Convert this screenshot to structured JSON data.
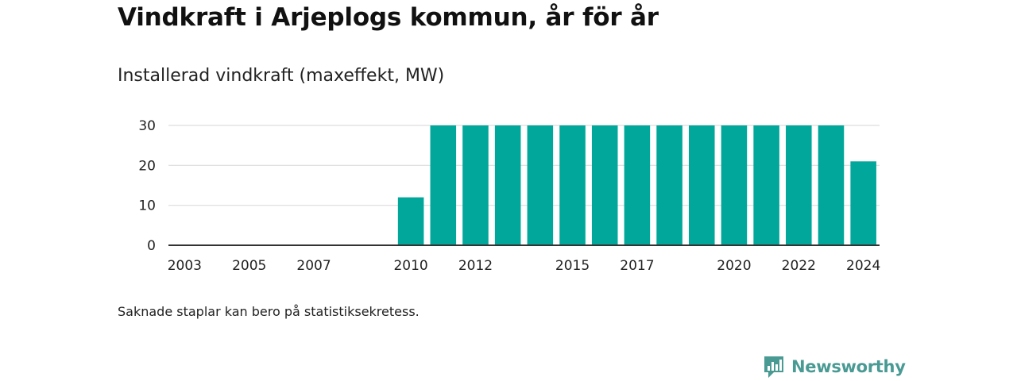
{
  "header": {
    "title": "Vindkraft i Arjeplogs kommun, år för år",
    "subtitle": "Installerad vindkraft (maxeffekt, MW)"
  },
  "footnote": "Saknade staplar kan bero på statistiksekretess.",
  "brand": {
    "name": "Newsworthy",
    "color": "#4a9a94"
  },
  "colors": {
    "bar": "#00a79a",
    "grid": "#dddddd",
    "axis": "#333333"
  },
  "chart_data": {
    "type": "bar",
    "x": [
      2003,
      2004,
      2005,
      2006,
      2007,
      2008,
      2009,
      2010,
      2011,
      2012,
      2013,
      2014,
      2015,
      2016,
      2017,
      2018,
      2019,
      2020,
      2021,
      2022,
      2023,
      2024
    ],
    "values": [
      0,
      0,
      0,
      0,
      0,
      0,
      0,
      12,
      30,
      30,
      30,
      30,
      30,
      30,
      30,
      30,
      30,
      30,
      30,
      30,
      30,
      21
    ],
    "xticks": [
      "2003",
      "2005",
      "2007",
      "2010",
      "2012",
      "2015",
      "2017",
      "2020",
      "2022",
      "2024"
    ],
    "yticks": [
      "0",
      "10",
      "20",
      "30"
    ],
    "ylim": [
      0,
      30
    ],
    "grid": true,
    "title": "Vindkraft i Arjeplogs kommun, år för år",
    "subtitle": "Installerad vindkraft (maxeffekt, MW)",
    "xlabel": "",
    "ylabel": ""
  }
}
